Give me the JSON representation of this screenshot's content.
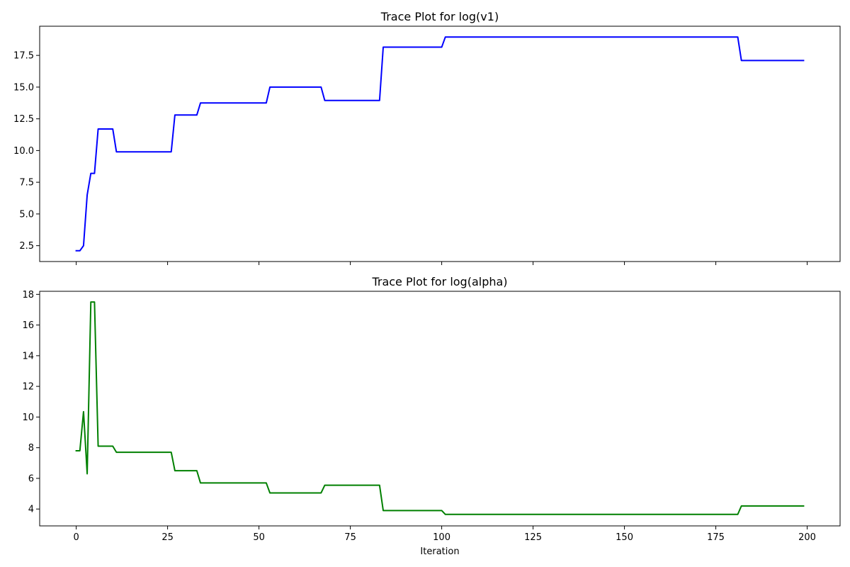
{
  "chart_data": [
    {
      "type": "line",
      "title": "Trace Plot for log(v1)",
      "xlabel": "",
      "ylabel": "",
      "xlim": [
        -10,
        209
      ],
      "ylim": [
        1.25,
        19.8
      ],
      "x_ticks": [
        0,
        25,
        50,
        75,
        100,
        125,
        150,
        175,
        200
      ],
      "x_tick_labels_visible": false,
      "y_ticks": [
        2.5,
        5.0,
        7.5,
        10.0,
        12.5,
        15.0,
        17.5
      ],
      "y_tick_labels": [
        "2.5",
        "5.0",
        "7.5",
        "10.0",
        "12.5",
        "15.0",
        "17.5"
      ],
      "grid": false,
      "legend": "none",
      "series": [
        {
          "color": "#0000ff",
          "points": [
            [
              0,
              2.1
            ],
            [
              1,
              2.1
            ],
            [
              2,
              2.5
            ],
            [
              3,
              6.5
            ],
            [
              4,
              8.2
            ],
            [
              5,
              8.2
            ],
            [
              6,
              11.7
            ],
            [
              10,
              11.7
            ],
            [
              11,
              9.9
            ],
            [
              26,
              9.9
            ],
            [
              27,
              12.8
            ],
            [
              33,
              12.8
            ],
            [
              34,
              13.75
            ],
            [
              52,
              13.75
            ],
            [
              53,
              15.0
            ],
            [
              67,
              15.0
            ],
            [
              68,
              13.95
            ],
            [
              83,
              13.95
            ],
            [
              84,
              18.15
            ],
            [
              100,
              18.15
            ],
            [
              101,
              18.95
            ],
            [
              181,
              18.95
            ],
            [
              182,
              17.1
            ],
            [
              199,
              17.1
            ]
          ]
        }
      ]
    },
    {
      "type": "line",
      "title": "Trace Plot for log(alpha)",
      "xlabel": "Iteration",
      "ylabel": "",
      "xlim": [
        -10,
        209
      ],
      "ylim": [
        2.9,
        18.2
      ],
      "x_ticks": [
        0,
        25,
        50,
        75,
        100,
        125,
        150,
        175,
        200
      ],
      "x_tick_labels": [
        "0",
        "25",
        "50",
        "75",
        "100",
        "125",
        "150",
        "175",
        "200"
      ],
      "x_tick_labels_visible": true,
      "y_ticks": [
        4,
        6,
        8,
        10,
        12,
        14,
        16,
        18
      ],
      "y_tick_labels": [
        "4",
        "6",
        "8",
        "10",
        "12",
        "14",
        "16",
        "18"
      ],
      "grid": false,
      "legend": "none",
      "series": [
        {
          "color": "#008000",
          "points": [
            [
              0,
              7.8
            ],
            [
              1,
              7.8
            ],
            [
              2,
              10.35
            ],
            [
              3,
              6.3
            ],
            [
              4,
              17.5
            ],
            [
              5,
              17.5
            ],
            [
              6,
              8.1
            ],
            [
              10,
              8.1
            ],
            [
              11,
              7.7
            ],
            [
              26,
              7.7
            ],
            [
              27,
              6.5
            ],
            [
              33,
              6.5
            ],
            [
              34,
              5.7
            ],
            [
              52,
              5.7
            ],
            [
              53,
              5.05
            ],
            [
              67,
              5.05
            ],
            [
              68,
              5.55
            ],
            [
              83,
              5.55
            ],
            [
              84,
              3.9
            ],
            [
              100,
              3.9
            ],
            [
              101,
              3.65
            ],
            [
              181,
              3.65
            ],
            [
              182,
              4.2
            ],
            [
              199,
              4.2
            ]
          ]
        }
      ]
    }
  ]
}
